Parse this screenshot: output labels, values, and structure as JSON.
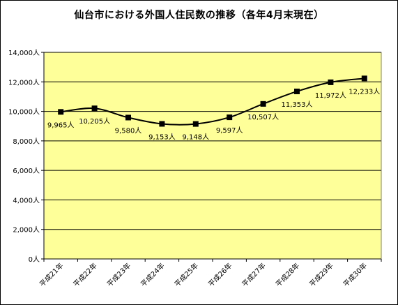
{
  "colors": {
    "plot_bg": "#FFFF99",
    "gridline": "#000000",
    "series": "#000000"
  },
  "chart_data": {
    "type": "line",
    "title": "仙台市における外国人住民数の推移（各年4月末現在）",
    "xlabel": "",
    "ylabel": "",
    "categories": [
      "平成21年",
      "平成22年",
      "平成23年",
      "平成24年",
      "平成25年",
      "平成26年",
      "平成27年",
      "平成28年",
      "平成29年",
      "平成30年"
    ],
    "series": [
      {
        "values": [
          9965,
          10205,
          9580,
          9153,
          9148,
          9597,
          10507,
          11353,
          11972,
          12233
        ]
      }
    ],
    "data_labels": [
      "9,965人",
      "10,205人",
      "9,580人",
      "9,153人",
      "9,148人",
      "9,597人",
      "10,507人",
      "11,353人",
      "11,972人",
      "12,233人"
    ],
    "ylim": [
      0,
      14000
    ],
    "yticks": [
      0,
      2000,
      4000,
      6000,
      8000,
      10000,
      12000,
      14000
    ],
    "ytick_labels": [
      "0人",
      "2,000人",
      "4,000人",
      "6,000人",
      "8,000人",
      "10,000人",
      "12,000人",
      "14,000人"
    ],
    "grid": true,
    "legend": "none"
  }
}
